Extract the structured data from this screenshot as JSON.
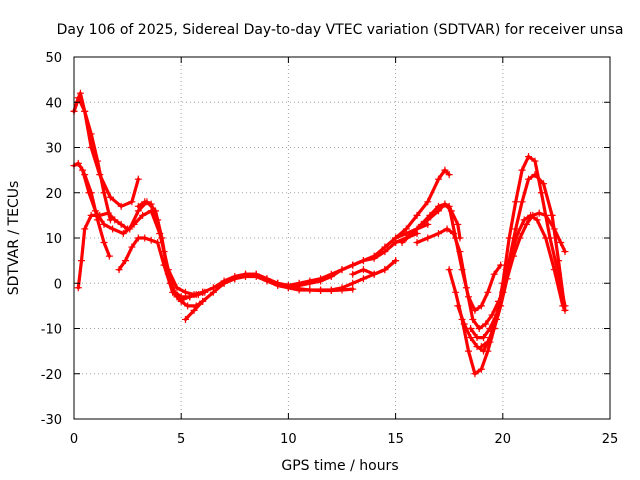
{
  "chart_data": {
    "type": "scatter",
    "title": "Day 106 of 2025, Sidereal Day-to-day VTEC variation (SDTVAR) for receiver unsa",
    "xlabel": "GPS time / hours",
    "ylabel": "SDTVAR / TECUs",
    "xlim": [
      0,
      25
    ],
    "ylim": [
      -30,
      50
    ],
    "xticks": [
      0,
      5,
      10,
      15,
      20,
      25
    ],
    "yticks": [
      -30,
      -20,
      -10,
      0,
      10,
      20,
      30,
      40,
      50
    ],
    "grid": true,
    "marker": "+",
    "color": "#ff0000",
    "series": [
      {
        "name": "trace-1",
        "x": [
          0.0,
          0.2,
          0.5,
          0.8,
          1.2,
          1.7,
          2.2,
          2.7,
          3.0
        ],
        "y": [
          38,
          41,
          38,
          30,
          24,
          19,
          17,
          18,
          23
        ]
      },
      {
        "name": "trace-2",
        "x": [
          0.0,
          0.2,
          0.4,
          0.7,
          1.0,
          1.4,
          1.8,
          2.3,
          2.8,
          3.2,
          3.6,
          4.0,
          4.4,
          4.8,
          5.2,
          5.6,
          6.0
        ],
        "y": [
          26,
          26.5,
          25,
          20,
          16,
          13,
          12,
          11,
          13,
          15,
          16,
          11,
          3,
          -1,
          -2,
          -2.5,
          -2
        ]
      },
      {
        "name": "trace-3",
        "x": [
          0.0,
          0.15,
          0.3,
          0.5,
          0.8,
          1.1,
          1.4,
          1.7
        ],
        "y": [
          38,
          40,
          42,
          38,
          33,
          27,
          20,
          14
        ]
      },
      {
        "name": "trace-4",
        "x": [
          0.2,
          0.35,
          0.5,
          0.8,
          1.2,
          1.6,
          1.9,
          2.2,
          2.5
        ],
        "y": [
          -1,
          5,
          12,
          15,
          15,
          15.5,
          14,
          13,
          12
        ]
      },
      {
        "name": "trace-5",
        "x": [
          0.5,
          0.8,
          1.1,
          1.4,
          1.65
        ],
        "y": [
          24,
          20,
          14,
          9,
          6
        ]
      },
      {
        "name": "trace-6",
        "x": [
          2.1,
          2.4,
          2.7,
          3.0,
          3.3,
          3.6,
          3.9,
          4.2,
          4.6,
          5.0,
          5.3,
          5.7,
          6.0
        ],
        "y": [
          3,
          5,
          8,
          10,
          10,
          9.5,
          9,
          4,
          -2,
          -4,
          -5,
          -5,
          -4
        ]
      },
      {
        "name": "trace-7",
        "x": [
          2.6,
          3.0,
          3.4,
          3.8,
          4.1,
          4.4,
          4.7,
          5.0,
          5.4,
          5.8,
          6.1
        ],
        "y": [
          12,
          16,
          18,
          16,
          10,
          2,
          -2,
          -3,
          -3,
          -2.5,
          -2
        ]
      },
      {
        "name": "trace-8",
        "x": [
          3.0,
          3.3,
          3.6,
          3.9,
          4.2,
          4.5,
          4.8,
          5.1,
          5.4,
          5.7,
          6.0
        ],
        "y": [
          17,
          18,
          17.5,
          14,
          7,
          0,
          -3,
          -3.5,
          -3,
          -2.5,
          -2
        ]
      },
      {
        "name": "trace-9",
        "x": [
          5.2,
          5.6,
          6.0,
          6.5,
          7.0,
          7.5,
          8.0,
          8.5,
          9.0,
          9.5,
          10.0,
          10.5,
          11.0,
          11.5,
          12.0,
          12.5,
          13.0,
          13.5,
          14.0,
          14.5,
          15.0
        ],
        "y": [
          -8,
          -6,
          -4,
          -2,
          0,
          1,
          1.5,
          1.5,
          0.5,
          -0.5,
          -1,
          -1.5,
          -1.5,
          -1.5,
          -1.5,
          -1,
          0,
          1,
          2,
          3,
          5
        ]
      },
      {
        "name": "trace-10",
        "x": [
          6.0,
          6.5,
          7.0,
          7.5,
          8.0,
          8.5,
          9.0,
          9.5,
          10.0,
          10.5,
          11.0,
          11.5,
          12.0,
          12.5,
          13.0,
          13.5,
          14.0,
          14.5,
          15.0,
          15.5,
          16.0
        ],
        "y": [
          -2,
          -1,
          0.5,
          1.5,
          2,
          2,
          1,
          0,
          -0.5,
          0,
          0.5,
          1,
          2,
          3,
          4,
          5,
          5.5,
          7,
          9,
          10,
          11
        ]
      },
      {
        "name": "trace-11",
        "x": [
          7.0,
          7.5,
          8.0,
          8.5,
          9.0,
          9.5,
          10.0,
          10.5,
          11.0,
          11.5,
          12.0,
          12.5,
          13.0,
          13.5,
          14.0,
          14.5,
          15.0,
          15.5,
          16.0,
          16.5
        ],
        "y": [
          0,
          1,
          2,
          2,
          1,
          0,
          -0.5,
          -0.5,
          0,
          0.5,
          1.5,
          3,
          4,
          5,
          6,
          8,
          10,
          11,
          12,
          13
        ]
      },
      {
        "name": "trace-12",
        "x": [
          10.0,
          10.5,
          11.0,
          11.5,
          12.0,
          12.5,
          13.0
        ],
        "y": [
          -1,
          -1.2,
          -1.5,
          -1.6,
          -1.6,
          -1.5,
          -1.3
        ]
      },
      {
        "name": "trace-13",
        "x": [
          13.0,
          13.5,
          14.0,
          14.5,
          15.0
        ],
        "y": [
          2,
          3,
          2,
          3,
          5
        ]
      },
      {
        "name": "trace-14",
        "x": [
          15.0,
          15.5,
          16.0,
          16.5,
          17.0,
          17.3,
          17.5
        ],
        "y": [
          10,
          12,
          15,
          18,
          23,
          25,
          24
        ]
      },
      {
        "name": "trace-15",
        "x": [
          15.3,
          15.8,
          16.2,
          16.6,
          17.0,
          17.3,
          17.6,
          17.9,
          18.0
        ],
        "y": [
          9,
          11,
          13,
          15,
          17,
          17.5,
          16,
          13,
          10
        ]
      },
      {
        "name": "trace-16",
        "x": [
          15.0,
          15.5,
          16.0,
          16.5,
          17.0,
          17.3,
          17.5,
          17.8,
          18.1,
          18.4,
          18.7,
          19.0,
          19.3,
          19.6,
          19.9
        ],
        "y": [
          9,
          10,
          12,
          14,
          16,
          17.5,
          17,
          10,
          3,
          -3,
          -6,
          -5,
          -2,
          2,
          4
        ]
      },
      {
        "name": "trace-17",
        "x": [
          16.0,
          16.5,
          17.0,
          17.4,
          17.7,
          18.0,
          18.3,
          18.6,
          18.9,
          19.2,
          19.5,
          19.8
        ],
        "y": [
          9,
          10,
          11,
          12,
          11,
          7,
          -1,
          -8,
          -10,
          -9,
          -7,
          -4
        ]
      },
      {
        "name": "trace-18",
        "x": [
          17.5,
          17.8,
          18.1,
          18.4,
          18.7,
          19.0,
          19.3,
          19.6
        ],
        "y": [
          3,
          -2,
          -8,
          -15,
          -20,
          -19,
          -15,
          -10
        ]
      },
      {
        "name": "trace-19",
        "x": [
          17.9,
          18.2,
          18.5,
          18.8,
          19.1,
          19.4,
          19.7,
          20.0,
          20.3,
          20.7,
          21.0,
          21.3,
          21.6,
          22.0,
          22.4,
          22.8
        ],
        "y": [
          -5,
          -9,
          -12,
          -14,
          -15,
          -12,
          -8,
          -2,
          5,
          11,
          14,
          15,
          14,
          10,
          3,
          -5
        ]
      },
      {
        "name": "trace-20",
        "x": [
          18.5,
          18.8,
          19.1,
          19.4,
          19.7,
          20.0,
          20.3,
          20.6,
          20.9,
          21.2,
          21.5,
          21.9,
          22.3,
          22.6,
          22.9
        ],
        "y": [
          -10,
          -12,
          -12,
          -10,
          -7,
          -2,
          5,
          12,
          18,
          23,
          24,
          22,
          15,
          5,
          -6
        ]
      },
      {
        "name": "trace-21",
        "x": [
          19.4,
          19.7,
          20.0,
          20.3,
          20.6,
          20.9,
          21.2,
          21.5,
          21.8,
          22.2,
          22.6,
          22.9
        ],
        "y": [
          -13,
          -8,
          0,
          10,
          18,
          25,
          28,
          27,
          20,
          10,
          2,
          -5
        ]
      },
      {
        "name": "trace-22",
        "x": [
          19.0,
          19.3,
          19.6,
          19.9,
          20.2,
          20.5,
          20.8,
          21.1,
          21.4,
          21.7,
          22.0,
          22.4,
          22.7,
          22.9
        ],
        "y": [
          -14,
          -13,
          -10,
          -5,
          1,
          6,
          10,
          13,
          15,
          15.5,
          15,
          12,
          9,
          7
        ]
      }
    ]
  }
}
